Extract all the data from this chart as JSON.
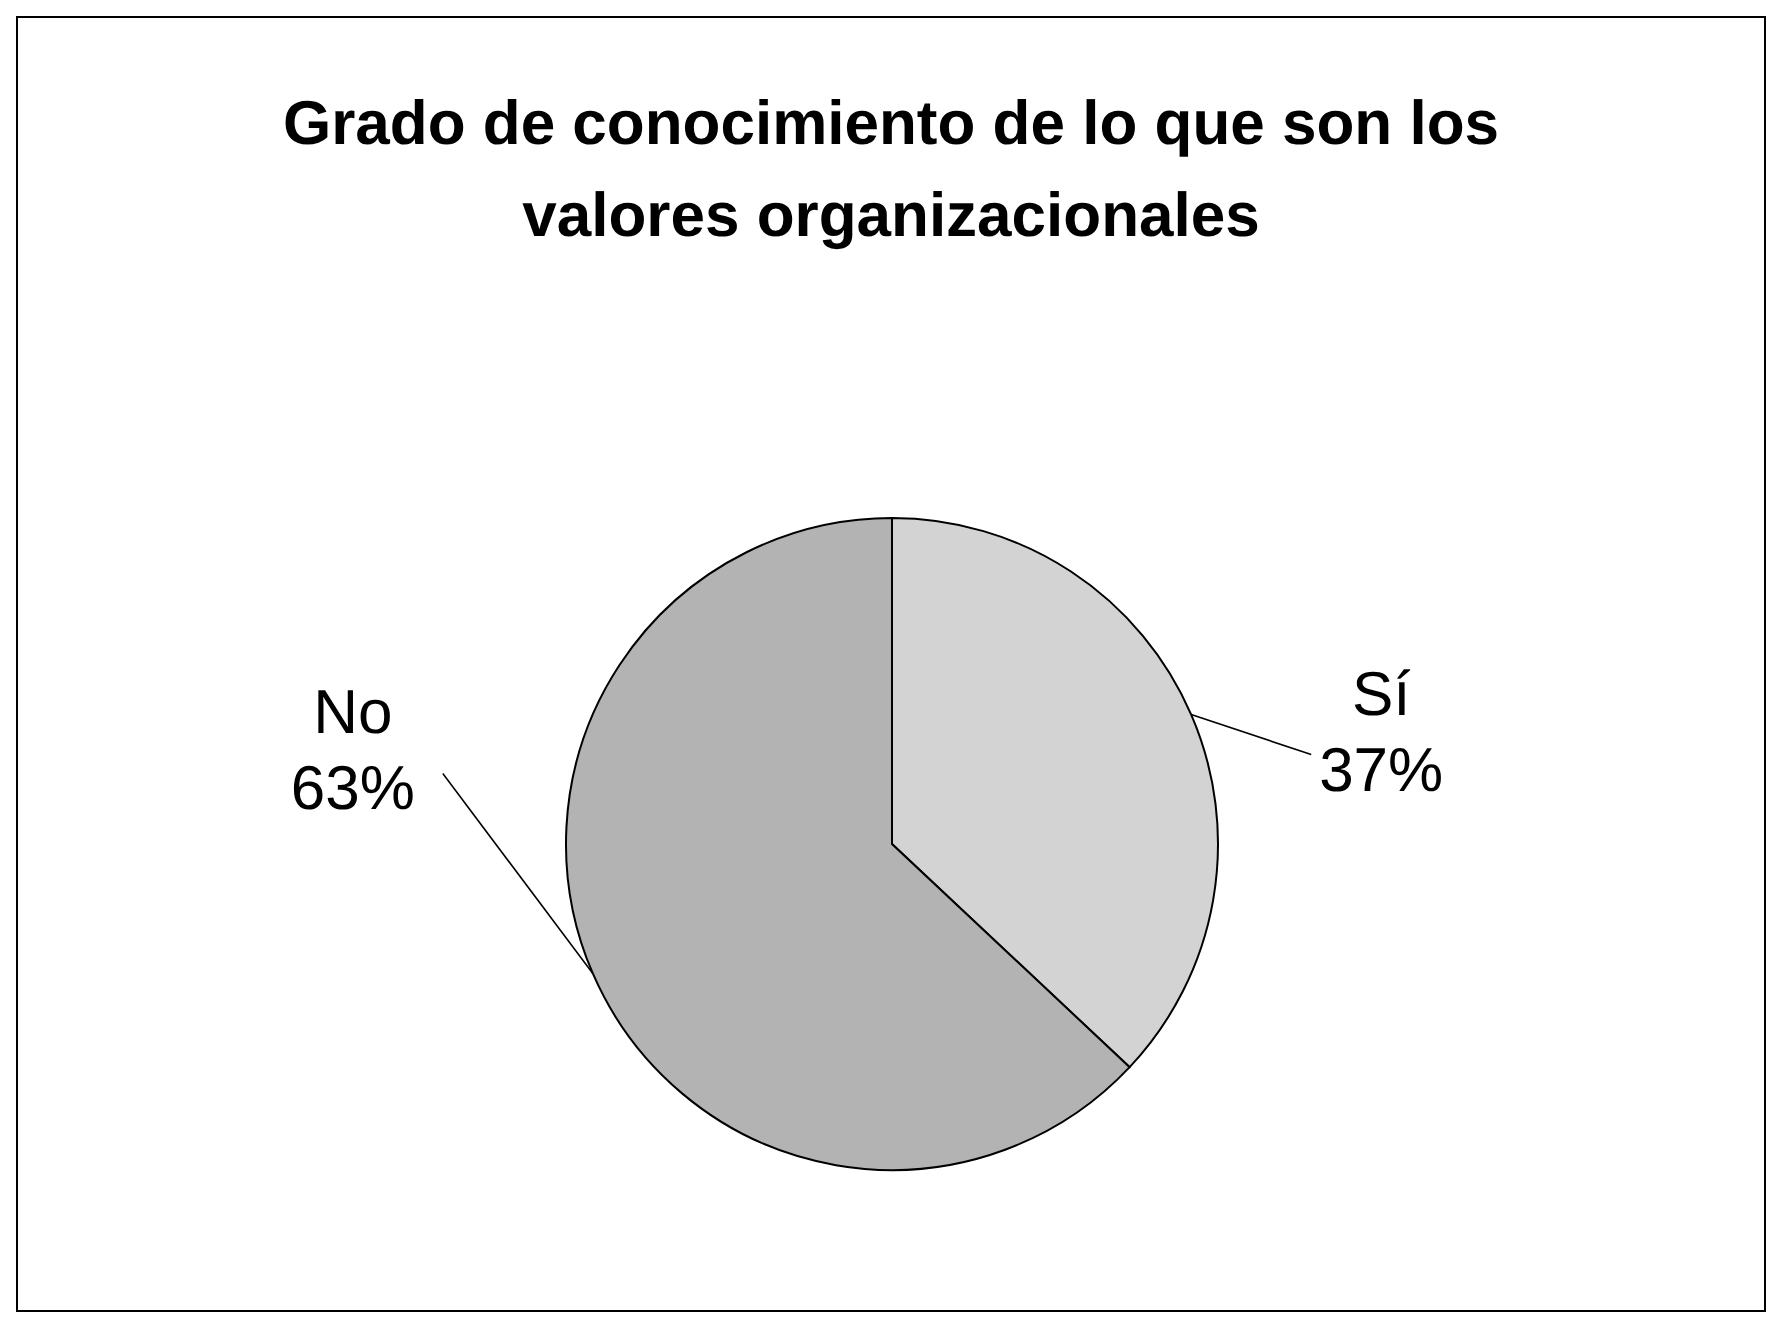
{
  "chart_data": {
    "type": "pie",
    "title": "Grado de conocimiento de lo que son los valores organizacionales",
    "categories": [
      "Sí",
      "No"
    ],
    "values": [
      37,
      63
    ],
    "value_labels": [
      "37%",
      "63%"
    ],
    "colors": [
      "#d3d3d3",
      "#b3b3b3"
    ]
  }
}
